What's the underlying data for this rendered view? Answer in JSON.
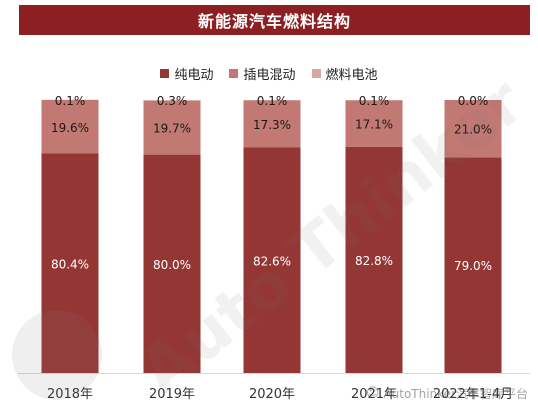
{
  "title": "新能源汽车燃料结构",
  "watermark": {
    "brand": "Auto Thinker",
    "footer": "AutoThinker汽车智库平台",
    "footer_icon": "wechat-icon"
  },
  "colors": {
    "title_bg": "#8b1f21",
    "bev": "#943634",
    "phev": "#c27873",
    "fcev": "#d8a7a3"
  },
  "chart_data": {
    "type": "bar",
    "stacked": true,
    "normalized": true,
    "categories": [
      "2018年",
      "2019年",
      "2020年",
      "2021年",
      "2022年1-4月"
    ],
    "series": [
      {
        "name": "纯电动",
        "values": [
          80.4,
          80.0,
          82.6,
          82.8,
          79.0
        ],
        "labels": [
          "80.4%",
          "80.0%",
          "82.6%",
          "82.8%",
          "79.0%"
        ]
      },
      {
        "name": "插电混动",
        "values": [
          19.6,
          19.7,
          17.3,
          17.1,
          21.0
        ],
        "labels": [
          "19.6%",
          "19.7%",
          "17.3%",
          "17.1%",
          "21.0%"
        ]
      },
      {
        "name": "燃料电池",
        "values": [
          0.1,
          0.3,
          0.1,
          0.1,
          0.0
        ],
        "labels": [
          "0.1%",
          "0.3%",
          "0.1%",
          "0.1%",
          "0.0%"
        ]
      }
    ],
    "ylim": [
      0,
      100
    ],
    "legend_position": "top",
    "grid": false
  }
}
